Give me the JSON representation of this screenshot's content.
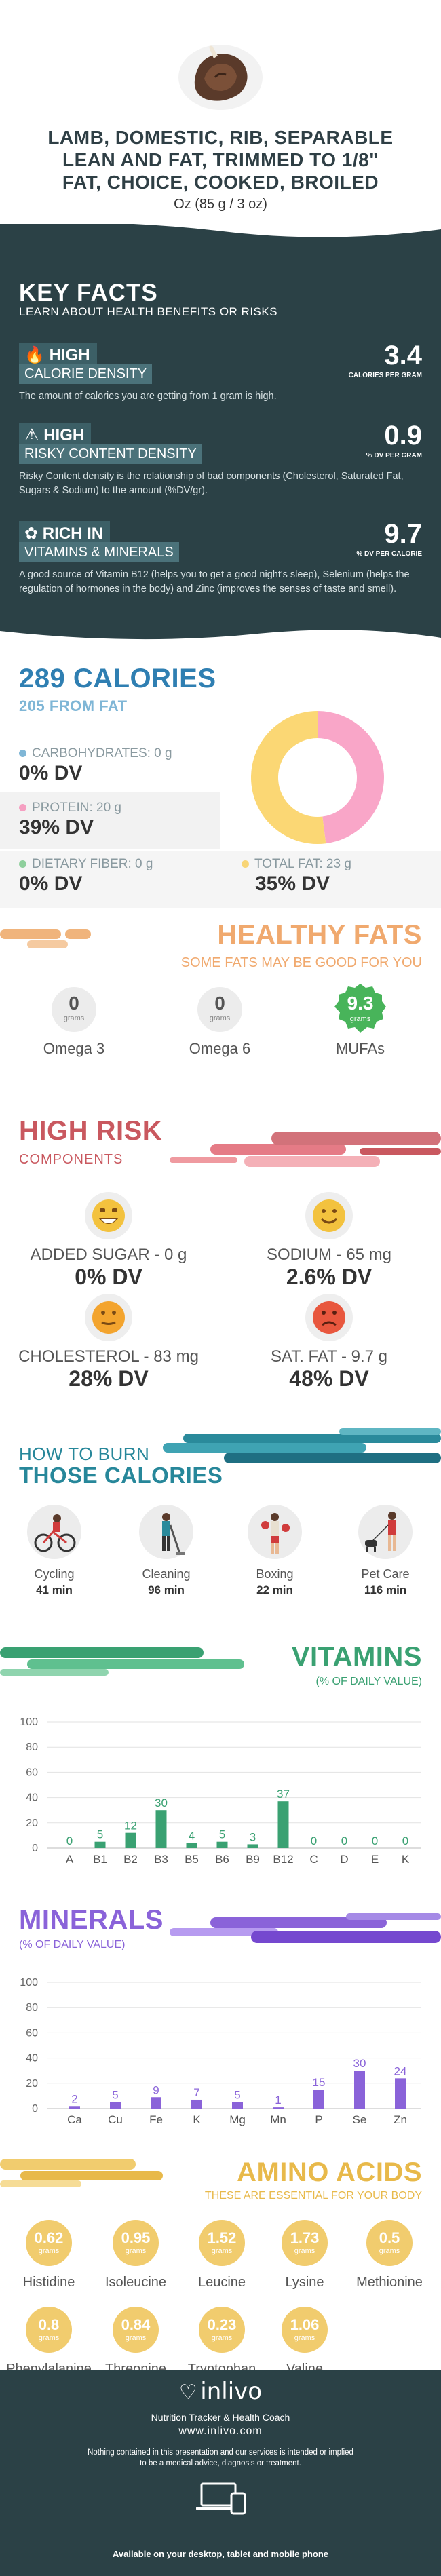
{
  "header": {
    "title_lines": [
      "LAMB, DOMESTIC, RIB, SEPARABLE",
      "LEAN AND FAT, TRIMMED TO 1/8\"",
      "FAT, CHOICE, COOKED, BROILED"
    ],
    "serving": "Oz (85 g / 3 oz)"
  },
  "key_facts": {
    "title": "KEY FACTS",
    "subtitle": "LEARN ABOUT HEALTH BENEFITS OR RISKS",
    "items": [
      {
        "level": "HIGH",
        "name": "CALORIE DENSITY",
        "value": "3.4",
        "unit": "CALORIES PER GRAM",
        "desc": "The amount of calories you are getting from 1 gram is high."
      },
      {
        "level": "HIGH",
        "name": "RISKY CONTENT DENSITY",
        "value": "0.9",
        "unit": "% DV PER GRAM",
        "desc": "Risky Content density is the relationship of bad components (Cholesterol, Saturated Fat, Sugars & Sodium) to the amount (%DV/gr)."
      },
      {
        "level": "RICH  IN",
        "name": "VITAMINS & MINERALS",
        "value": "9.7",
        "unit": "% DV PER CALORIE",
        "desc": "A good source of Vitamin B12 (helps you to get a good night's sleep), Selenium (helps the regulation of hormones in the body) and Zinc (improves the senses of taste and smell)."
      }
    ]
  },
  "calories": {
    "title": "289 CALORIES",
    "from_fat": "205 FROM FAT",
    "items": [
      {
        "label": "CARBOHYDRATES: 0 g",
        "dv": "0% DV",
        "color": "#7fb6d6"
      },
      {
        "label": "PROTEIN: 20 g",
        "dv": "39% DV",
        "color": "#f59fc1"
      },
      {
        "label": "DIETARY FIBER: 0 g",
        "dv": "0% DV",
        "color": "#8ecf9c"
      },
      {
        "label": "TOTAL FAT: 23 g",
        "dv": "35% DV",
        "color": "#f8d576"
      }
    ],
    "donut": [
      {
        "name": "protein",
        "percent": 48,
        "color": "#f9a6c8"
      },
      {
        "name": "fat",
        "percent": 52,
        "color": "#fbd774"
      }
    ]
  },
  "healthy_fats": {
    "title": "HEALTHY FATS",
    "subtitle": "SOME FATS MAY BE GOOD FOR YOU",
    "unit": "grams",
    "items": [
      {
        "value": "0",
        "label": "Omega 3"
      },
      {
        "value": "0",
        "label": "Omega 6"
      },
      {
        "value": "9.3",
        "label": "MUFAs"
      }
    ]
  },
  "high_risk": {
    "title": "HIGH RISK",
    "subtitle": "COMPONENTS",
    "items": [
      {
        "label": "ADDED SUGAR - 0 g",
        "dv": "0% DV",
        "mood": "very-happy"
      },
      {
        "label": "SODIUM - 65 mg",
        "dv": "2.6% DV",
        "mood": "happy"
      },
      {
        "label": "CHOLESTEROL - 83 mg",
        "dv": "28% DV",
        "mood": "neutral"
      },
      {
        "label": "SAT. FAT - 9.7 g",
        "dv": "48% DV",
        "mood": "sad"
      }
    ]
  },
  "burn": {
    "title_top": "HOW TO BURN",
    "title_bottom": "THOSE CALORIES",
    "items": [
      {
        "label": "Cycling",
        "minutes": "41 min",
        "icon": "cycling-icon"
      },
      {
        "label": "Cleaning",
        "minutes": "96 min",
        "icon": "cleaning-icon"
      },
      {
        "label": "Boxing",
        "minutes": "22 min",
        "icon": "boxing-icon"
      },
      {
        "label": "Pet Care",
        "minutes": "116 min",
        "icon": "pet-care-icon"
      }
    ]
  },
  "vitamins": {
    "title": "VITAMINS",
    "subtitle": "(% OF DAILY VALUE)"
  },
  "minerals": {
    "title": "MINERALS",
    "subtitle": "(% OF DAILY VALUE)"
  },
  "chart_data": [
    {
      "type": "bar",
      "categories": [
        "A",
        "B1",
        "B2",
        "B3",
        "B5",
        "B6",
        "B9",
        "B12",
        "C",
        "D",
        "E",
        "K"
      ],
      "values": [
        0,
        5,
        12,
        30,
        4,
        5,
        3,
        37,
        0,
        0,
        0,
        0
      ],
      "ylim": [
        0,
        100
      ],
      "yticks": [
        0,
        20,
        40,
        60,
        80,
        100
      ],
      "color": "#3aa172",
      "grid": true
    },
    {
      "type": "bar",
      "categories": [
        "Ca",
        "Cu",
        "Fe",
        "K",
        "Mg",
        "Mn",
        "P",
        "Se",
        "Zn"
      ],
      "values": [
        2,
        5,
        9,
        7,
        5,
        1,
        15,
        30,
        24
      ],
      "ylim": [
        0,
        100
      ],
      "yticks": [
        0,
        20,
        40,
        60,
        80,
        100
      ],
      "color": "#8a63d9",
      "grid": true
    }
  ],
  "amino": {
    "title": "AMINO ACIDS",
    "subtitle": "THESE ARE ESSENTIAL FOR YOUR BODY",
    "unit": "grams",
    "items": [
      {
        "value": "0.62",
        "label": "Histidine"
      },
      {
        "value": "0.95",
        "label": "Isoleucine"
      },
      {
        "value": "1.52",
        "label": "Leucine"
      },
      {
        "value": "1.73",
        "label": "Lysine"
      },
      {
        "value": "0.5",
        "label": "Methionine"
      },
      {
        "value": "0.8",
        "label": "Phenylalanine"
      },
      {
        "value": "0.84",
        "label": "Threonine"
      },
      {
        "value": "0.23",
        "label": "Tryptophan"
      },
      {
        "value": "1.06",
        "label": "Valine"
      }
    ]
  },
  "footer": {
    "brand": "inlivo",
    "tagline": "Nutrition Tracker & Health Coach",
    "url": "www.inlivo.com",
    "disclaimer": "Nothing contained in this presentation and our services is intended or implied to be a medical advice, diagnosis or treatment.",
    "devices": "Available on your desktop, tablet and mobile phone"
  },
  "colors": {
    "dark": "#2b4146",
    "blue": "#2f7fb2",
    "orange": "#f0a96e",
    "red": "#c9585f",
    "teal": "#27879a",
    "green": "#3aa172",
    "purple": "#8a63d9",
    "gold": "#e8b94a"
  }
}
